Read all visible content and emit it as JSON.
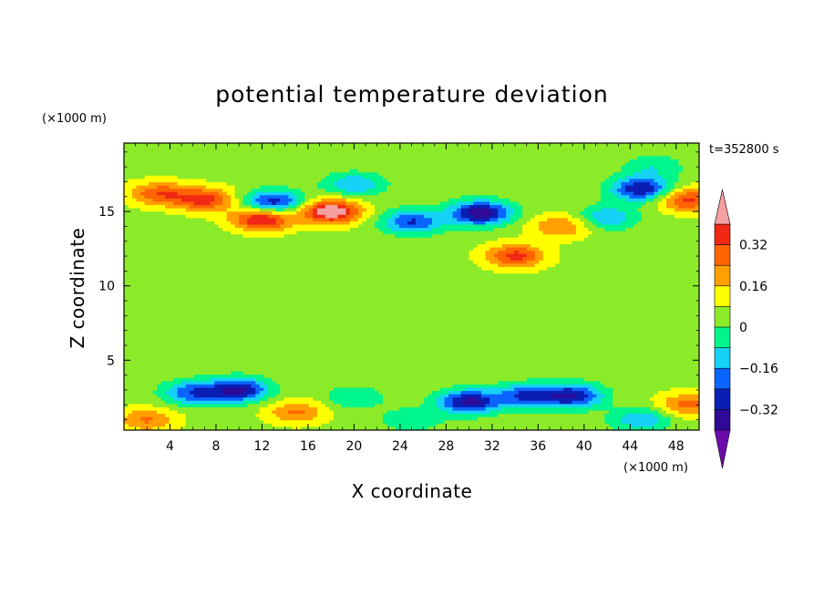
{
  "chart_data": {
    "type": "heatmap",
    "title": "potential temperature deviation",
    "xlabel": "X coordinate",
    "ylabel": "Z coordinate",
    "x_unit": "(×1000 m)",
    "y_unit": "(×1000 m)",
    "time_label": "t=352800 s",
    "xlim": [
      0,
      50
    ],
    "ylim": [
      0.3,
      19.6
    ],
    "x_ticks": [
      4,
      8,
      12,
      16,
      20,
      24,
      28,
      32,
      36,
      40,
      44,
      48
    ],
    "y_ticks": [
      5,
      10,
      15
    ],
    "colorbar": {
      "levels": [
        -0.48,
        -0.4,
        -0.32,
        -0.24,
        -0.16,
        -0.08,
        0,
        0.08,
        0.16,
        0.24,
        0.32,
        0.4,
        0.48
      ],
      "labeled_levels": [
        0.32,
        0.16,
        0,
        -0.16,
        -0.32
      ],
      "colors": [
        "#6a0aab",
        "#2e0a96",
        "#0a1eb4",
        "#0a64ff",
        "#14d2f5",
        "#00f58c",
        "#8ceb28",
        "#ffff00",
        "#ffa000",
        "#ff6400",
        "#f02814",
        "#f5a0a0"
      ],
      "extend": "both"
    },
    "features": [
      {
        "x": 7,
        "z": 15.8,
        "value": 0.3
      },
      {
        "x": 3,
        "z": 16.2,
        "value": 0.25
      },
      {
        "x": 18,
        "z": 15.0,
        "value": 0.44
      },
      {
        "x": 12,
        "z": 14.5,
        "value": 0.38
      },
      {
        "x": 34,
        "z": 12.0,
        "value": 0.3
      },
      {
        "x": 38,
        "z": 14.0,
        "value": 0.2
      },
      {
        "x": 49,
        "z": 15.8,
        "value": 0.3
      },
      {
        "x": 31,
        "z": 14.9,
        "value": -0.44
      },
      {
        "x": 25,
        "z": 14.3,
        "value": -0.3
      },
      {
        "x": 13,
        "z": 15.6,
        "value": -0.36
      },
      {
        "x": 45,
        "z": 16.5,
        "value": -0.38
      },
      {
        "x": 20,
        "z": 16.8,
        "value": -0.2
      },
      {
        "x": 42,
        "z": 14.6,
        "value": -0.2
      },
      {
        "x": 46,
        "z": 18.0,
        "value": -0.12
      },
      {
        "x": 6,
        "z": 2.8,
        "value": -0.28
      },
      {
        "x": 10,
        "z": 3.0,
        "value": -0.38
      },
      {
        "x": 30,
        "z": 2.2,
        "value": -0.4
      },
      {
        "x": 35,
        "z": 2.6,
        "value": -0.3
      },
      {
        "x": 39,
        "z": 2.6,
        "value": -0.36
      },
      {
        "x": 45,
        "z": 1.0,
        "value": -0.2
      },
      {
        "x": 2,
        "z": 1.0,
        "value": 0.2
      },
      {
        "x": 49,
        "z": 2.0,
        "value": 0.22
      },
      {
        "x": 15,
        "z": 1.5,
        "value": 0.2
      },
      {
        "x": 25,
        "z": 1.0,
        "value": -0.12
      },
      {
        "x": 20,
        "z": 2.5,
        "value": -0.12
      }
    ]
  }
}
